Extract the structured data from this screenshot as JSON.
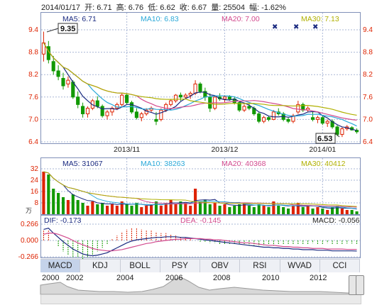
{
  "header": {
    "date": "2014/01/17",
    "open_label": "开:",
    "open": "6.71",
    "high_label": "高:",
    "high": "6.76",
    "low_label": "低:",
    "low": "6.62",
    "close_label": "收:",
    "close": "6.67",
    "vol_label": "量:",
    "vol": "25504",
    "chg_label": "幅:",
    "chg": "-1.62%"
  },
  "colors": {
    "up": "#dd2200",
    "down": "#119900",
    "ma5": "#1a2a80",
    "ma10": "#2aa8d8",
    "ma20": "#d24a8e",
    "ma30": "#b0b000",
    "grid": "#aab7d6",
    "frame": "#8090b8"
  },
  "price_panel": {
    "legend": {
      "ma5": "MA5: 6.71",
      "ma10": "MA10: 6.83",
      "ma20": "MA20: 7.00",
      "ma30": "MA30: 7.13"
    },
    "high_callout": "9.35",
    "low_callout": "6.53",
    "x_labels": [
      "2013/11",
      "2013/12",
      "2014/01"
    ]
  },
  "volume_panel": {
    "legend": {
      "ma5": "MA5: 31067",
      "ma10": "MA10: 38263",
      "ma20": "MA20: 40368",
      "ma30": "MA30: 40412"
    },
    "unit": "万"
  },
  "macd_panel": {
    "legend": {
      "dif": "DIF: -0.173",
      "dea": "DEA: -0.145",
      "macd": "MACD: -0.056"
    }
  },
  "tabs": [
    "MACD",
    "KDJ",
    "BOLL",
    "PSY",
    "OBV",
    "RSI",
    "WVAD",
    "CCI"
  ],
  "active_tab": "MACD",
  "years": [
    "2000",
    "2002",
    "2004",
    "2006",
    "2008",
    "2010",
    "2012"
  ],
  "chart_data": [
    {
      "type": "candlestick",
      "title": "",
      "ylim": [
        6.4,
        9.4
      ],
      "y_ticks": [
        9.4,
        8.8,
        8.2,
        7.6,
        7.0,
        6.4
      ],
      "x_labels": [
        "2013/11",
        "2013/12",
        "2014/01"
      ],
      "ohlc": [
        [
          8.75,
          9.35,
          8.55,
          9.05
        ],
        [
          8.95,
          9.1,
          8.5,
          8.6
        ],
        [
          8.55,
          8.7,
          8.2,
          8.3
        ],
        [
          8.3,
          8.45,
          8.05,
          8.15
        ],
        [
          8.1,
          8.25,
          7.8,
          7.9
        ],
        [
          7.95,
          8.15,
          7.85,
          8.05
        ],
        [
          8.0,
          8.05,
          7.55,
          7.6
        ],
        [
          7.6,
          7.75,
          7.3,
          7.4
        ],
        [
          7.35,
          7.45,
          7.05,
          7.15
        ],
        [
          7.15,
          7.35,
          7.05,
          7.3
        ],
        [
          7.3,
          7.55,
          7.25,
          7.5
        ],
        [
          7.5,
          7.62,
          7.3,
          7.35
        ],
        [
          7.35,
          7.4,
          7.05,
          7.1
        ],
        [
          7.1,
          7.25,
          7.0,
          7.2
        ],
        [
          7.2,
          7.35,
          7.1,
          7.3
        ],
        [
          7.3,
          7.45,
          7.25,
          7.4
        ],
        [
          7.4,
          7.7,
          7.35,
          7.65
        ],
        [
          7.65,
          7.7,
          7.4,
          7.45
        ],
        [
          7.45,
          7.5,
          7.15,
          7.2
        ],
        [
          7.2,
          7.3,
          7.0,
          7.05
        ],
        [
          7.05,
          7.2,
          6.95,
          7.15
        ],
        [
          7.15,
          7.3,
          7.1,
          7.25
        ],
        [
          7.25,
          7.35,
          7.2,
          7.3
        ],
        [
          7.0,
          7.2,
          6.85,
          6.95
        ],
        [
          7.0,
          7.3,
          6.95,
          7.25
        ],
        [
          7.25,
          7.45,
          7.2,
          7.4
        ],
        [
          7.4,
          7.55,
          7.35,
          7.5
        ],
        [
          7.5,
          7.68,
          7.45,
          7.65
        ],
        [
          7.65,
          7.72,
          7.5,
          7.6
        ],
        [
          7.6,
          7.7,
          7.55,
          7.65
        ],
        [
          7.65,
          7.75,
          7.55,
          7.7
        ],
        [
          7.7,
          8.05,
          7.65,
          7.95
        ],
        [
          7.95,
          8.0,
          7.7,
          7.75
        ],
        [
          7.75,
          7.85,
          7.5,
          7.6
        ],
        [
          7.6,
          7.7,
          7.2,
          7.3
        ],
        [
          7.3,
          7.65,
          7.25,
          7.6
        ],
        [
          7.6,
          7.7,
          7.5,
          7.55
        ],
        [
          7.55,
          7.65,
          7.45,
          7.6
        ],
        [
          7.6,
          7.65,
          7.5,
          7.55
        ],
        [
          7.55,
          7.62,
          7.4,
          7.45
        ],
        [
          7.45,
          7.5,
          7.2,
          7.25
        ],
        [
          7.25,
          7.4,
          7.2,
          7.35
        ],
        [
          7.35,
          7.45,
          7.25,
          7.3
        ],
        [
          7.3,
          7.35,
          7.1,
          7.15
        ],
        [
          7.15,
          7.2,
          6.9,
          6.95
        ],
        [
          6.95,
          7.1,
          6.9,
          7.05
        ],
        [
          7.05,
          7.1,
          6.95,
          7.0
        ],
        [
          7.0,
          7.25,
          6.98,
          7.2
        ],
        [
          7.2,
          7.3,
          7.1,
          7.15
        ],
        [
          7.15,
          7.2,
          6.95,
          7.0
        ],
        [
          7.0,
          7.05,
          6.9,
          6.95
        ],
        [
          6.95,
          7.15,
          6.9,
          7.1
        ],
        [
          7.2,
          7.5,
          7.15,
          7.4
        ],
        [
          7.4,
          7.45,
          7.2,
          7.25
        ],
        [
          7.25,
          7.35,
          7.2,
          7.3
        ],
        [
          7.05,
          7.2,
          6.95,
          7.0
        ],
        [
          7.0,
          7.1,
          6.9,
          7.05
        ],
        [
          7.05,
          7.1,
          6.85,
          6.9
        ],
        [
          6.9,
          7.0,
          6.8,
          6.95
        ],
        [
          6.95,
          7.0,
          6.75,
          6.8
        ],
        [
          6.8,
          6.85,
          6.55,
          6.6
        ],
        [
          6.6,
          6.8,
          6.53,
          6.75
        ],
        [
          6.75,
          6.85,
          6.7,
          6.8
        ],
        [
          6.78,
          6.82,
          6.7,
          6.72
        ],
        [
          6.71,
          6.76,
          6.62,
          6.67
        ]
      ]
    },
    {
      "type": "bar",
      "title": "",
      "ylim": [
        0,
        32
      ],
      "y_ticks": [
        32,
        24,
        16,
        8
      ],
      "values": [
        30,
        28,
        18,
        15,
        12,
        10,
        14,
        10,
        8,
        6,
        9,
        7,
        8,
        6,
        7,
        6,
        9,
        7,
        6,
        8,
        5,
        6,
        7,
        9,
        6,
        8,
        10,
        7,
        9,
        8,
        6,
        18,
        9,
        10,
        7,
        8,
        6,
        7,
        5,
        6,
        7,
        8,
        6,
        5,
        7,
        6,
        5,
        9,
        6,
        5,
        4,
        6,
        8,
        5,
        6,
        4,
        5,
        4,
        3,
        5,
        6,
        4,
        3,
        3,
        2
      ]
    },
    {
      "type": "line",
      "title": "",
      "ylim": [
        -0.266,
        0.266
      ],
      "y_ticks": [
        0.266,
        0.0,
        -0.266
      ],
      "series": [
        {
          "name": "DIF",
          "values": [
            0.18,
            0.2,
            0.12,
            0.05,
            -0.02,
            -0.08,
            -0.14,
            -0.18,
            -0.22,
            -0.24,
            -0.25,
            -0.24,
            -0.22,
            -0.2,
            -0.16,
            -0.12,
            -0.08,
            -0.04,
            -0.01,
            0.01,
            0.02,
            0.03,
            0.04,
            0.05,
            0.05,
            0.06,
            0.06,
            0.06,
            0.05,
            0.05,
            0.04,
            0.03,
            0.02,
            0.01,
            0.0,
            -0.01,
            -0.02,
            -0.03,
            -0.04,
            -0.05,
            -0.06,
            -0.07,
            -0.08,
            -0.09,
            -0.1,
            -0.11,
            -0.11,
            -0.12,
            -0.12,
            -0.13,
            -0.13,
            -0.14,
            -0.14,
            -0.15,
            -0.15,
            -0.15,
            -0.16,
            -0.16,
            -0.16,
            -0.17,
            -0.17,
            -0.17,
            -0.17,
            -0.17,
            -0.173
          ]
        },
        {
          "name": "DEA",
          "values": [
            0.1,
            0.12,
            0.12,
            0.1,
            0.07,
            0.04,
            0.0,
            -0.04,
            -0.07,
            -0.1,
            -0.13,
            -0.15,
            -0.16,
            -0.17,
            -0.17,
            -0.16,
            -0.15,
            -0.13,
            -0.11,
            -0.09,
            -0.07,
            -0.05,
            -0.04,
            -0.02,
            -0.01,
            0.0,
            0.01,
            0.02,
            0.02,
            0.03,
            0.03,
            0.03,
            0.03,
            0.02,
            0.02,
            0.01,
            0.01,
            0.0,
            -0.01,
            -0.02,
            -0.03,
            -0.04,
            -0.04,
            -0.05,
            -0.06,
            -0.07,
            -0.08,
            -0.08,
            -0.09,
            -0.1,
            -0.1,
            -0.11,
            -0.11,
            -0.12,
            -0.12,
            -0.13,
            -0.13,
            -0.13,
            -0.14,
            -0.14,
            -0.14,
            -0.14,
            -0.145,
            -0.145,
            -0.145
          ]
        }
      ]
    }
  ]
}
